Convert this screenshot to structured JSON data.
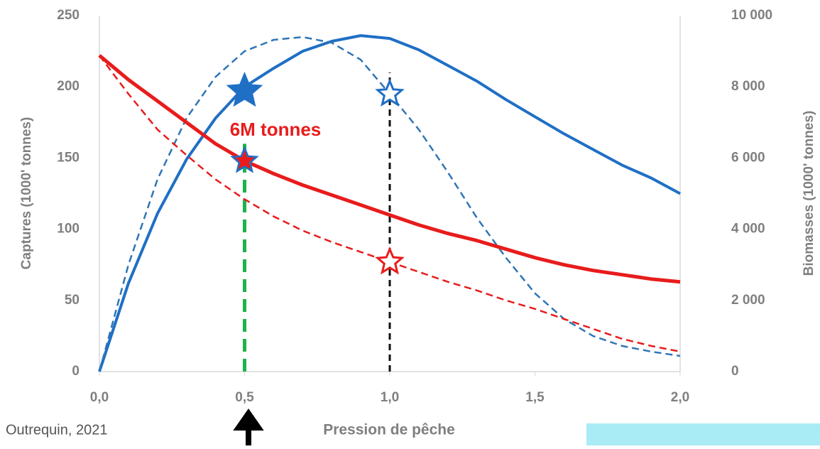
{
  "chart_data": {
    "type": "line",
    "y_label": "Captures (1000' tonnes)",
    "y2_label": "Biomasses (1000' tonnes)",
    "x_label": "Pression de pêche",
    "annotation": "6M tonnes",
    "source": "Outrequin, 2021",
    "x": [
      0,
      0.1,
      0.2,
      0.3,
      0.4,
      0.5,
      0.6,
      0.7,
      0.8,
      0.9,
      1.0,
      1.1,
      1.2,
      1.3,
      1.4,
      1.5,
      1.6,
      1.7,
      1.8,
      1.9,
      2.0
    ],
    "xlim": [
      0,
      2.0
    ],
    "xticks": [
      {
        "value": 0,
        "label": "0,0"
      },
      {
        "value": 0.5,
        "label": "0,5"
      },
      {
        "value": 1.0,
        "label": "1,0"
      },
      {
        "value": 1.5,
        "label": "1,5"
      },
      {
        "value": 2.0,
        "label": "2,0"
      }
    ],
    "ylim": [
      0,
      250
    ],
    "yticks": [
      0,
      50,
      100,
      150,
      200,
      250
    ],
    "y2lim": [
      0,
      10000
    ],
    "y2ticks": [
      0,
      {
        "value": 2000,
        "label": "2 000"
      },
      {
        "value": 4000,
        "label": "4 000"
      },
      {
        "value": 6000,
        "label": "6 000"
      },
      {
        "value": 8000,
        "label": "8 000"
      },
      {
        "value": 10000,
        "label": "10 000"
      }
    ],
    "series": [
      {
        "color": "#1f6fc5",
        "dashed": false,
        "values": [
          0,
          62,
          111,
          149,
          178,
          200,
          213,
          225,
          232,
          236,
          234,
          226,
          215,
          204,
          191,
          179,
          167,
          156,
          145,
          136,
          125
        ]
      },
      {
        "color": "#2e75b6",
        "dashed": true,
        "values": [
          0,
          75,
          135,
          178,
          207,
          225,
          233,
          235,
          231,
          219,
          195,
          170,
          140,
          108,
          80,
          55,
          37,
          25,
          18,
          14,
          11
        ]
      },
      {
        "color": "#e81c1c",
        "dashed": false,
        "axis": "y2",
        "values": [
          8880,
          8200,
          7600,
          7000,
          6400,
          5920,
          5560,
          5240,
          4960,
          4680,
          4400,
          4120,
          3880,
          3680,
          3440,
          3200,
          3000,
          2840,
          2720,
          2600,
          2520
        ]
      },
      {
        "color": "#e81c1c",
        "dashed": true,
        "axis": "y2",
        "values": [
          8880,
          7800,
          6800,
          6080,
          5400,
          4840,
          4360,
          3960,
          3640,
          3360,
          3080,
          2800,
          2520,
          2280,
          2000,
          1760,
          1480,
          1200,
          920,
          720,
          560
        ]
      }
    ],
    "vlines": [
      {
        "x": 0.5,
        "y": 160,
        "color": "#1db34a"
      },
      {
        "x": 1.0,
        "y": 210,
        "color": "#111111"
      }
    ],
    "markers": [
      {
        "x": 0.5,
        "y": 197,
        "fill": "#1f6fc5",
        "stroke": "#1f6fc5"
      },
      {
        "x": 0.5,
        "y": 148,
        "fill": "#e81c1c",
        "stroke": "#1f6fc5"
      },
      {
        "x": 1.0,
        "y": 195,
        "fill": "#ffffff",
        "stroke": "#1f6fc5"
      },
      {
        "x": 1.0,
        "y": 77,
        "fill": "#ffffff",
        "stroke": "#e81c1c"
      }
    ]
  }
}
